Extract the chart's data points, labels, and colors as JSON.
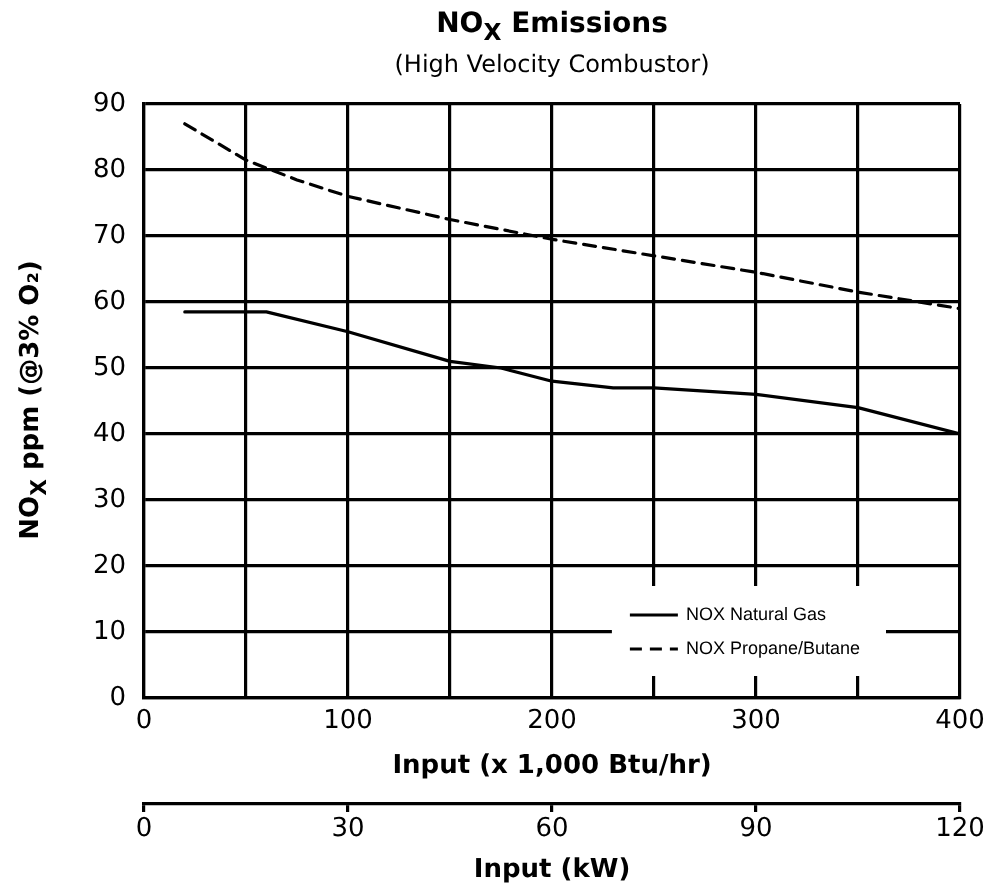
{
  "chart_data": {
    "type": "line",
    "title": "NO$_{X}$ Emissions",
    "subtitle": "(High Velocity Combustor)",
    "xlabel": "Input (x 1,000 Btu/hr)",
    "ylabel": "NO$_{X}$ ppm (@3% O₂)",
    "x2label": "Input (kW)",
    "series": [
      {
        "name": "NOX Natural Gas",
        "color": "#000000",
        "line_style": "solid",
        "x": [
          20,
          60,
          100,
          150,
          175,
          200,
          230,
          250,
          300,
          350,
          400
        ],
        "values": [
          58.5,
          58.5,
          55.5,
          51,
          50,
          48,
          47,
          47,
          46,
          44,
          40
        ]
      },
      {
        "name": "NOX Propane/Butane",
        "color": "#000000",
        "line_style": "dashed",
        "x": [
          20,
          50,
          75,
          100,
          150,
          200,
          250,
          300,
          350,
          400
        ],
        "values": [
          87,
          81.5,
          78.5,
          76,
          72.5,
          69.5,
          67,
          64.5,
          61.5,
          59
        ]
      }
    ],
    "xlim": [
      0,
      400
    ],
    "xticks": [
      0,
      {
        "value": 50,
        "label": null
      },
      100,
      {
        "value": 150,
        "label": null
      },
      200,
      {
        "value": 250,
        "label": null
      },
      300,
      {
        "value": 350,
        "label": null
      },
      400
    ],
    "ylim": [
      0,
      90
    ],
    "yticks": [
      0,
      10,
      20,
      30,
      40,
      50,
      60,
      70,
      80,
      90
    ],
    "x2lim": [
      0,
      120
    ],
    "x2ticks": [
      0,
      30,
      60,
      90,
      120
    ],
    "grid": true,
    "legend": "bottom right",
    "marker": "none"
  }
}
